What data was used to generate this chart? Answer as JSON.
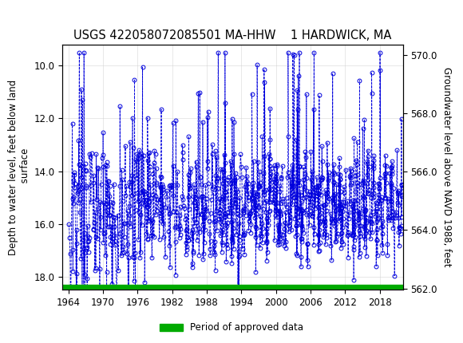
{
  "title": "USGS 422058072085501 MA-HHW    1 HARDWICK, MA",
  "ylabel_left": "Depth to water level, feet below land\n surface",
  "ylabel_right": "Groundwater level above NAVD 1988, feet",
  "ylim_left": [
    18.5,
    9.2
  ],
  "ylim_right": [
    561.95,
    570.35
  ],
  "xlim": [
    1963.0,
    2022.0
  ],
  "xticks": [
    1964,
    1970,
    1976,
    1982,
    1988,
    1994,
    2000,
    2006,
    2012,
    2018
  ],
  "yticks_left": [
    10.0,
    12.0,
    14.0,
    16.0,
    18.0
  ],
  "yticks_right": [
    562.0,
    564.0,
    566.0,
    568.0,
    570.0
  ],
  "header_color": "#1a6b3c",
  "data_color": "#0000dd",
  "period_bar_color": "#00aa00",
  "legend_label": "Period of approved data",
  "background_color": "#ffffff",
  "marker": "o",
  "markersize": 3.5,
  "linestyle": "--",
  "linewidth": 0.6,
  "title_fontsize": 10.5,
  "tick_fontsize": 8.5,
  "label_fontsize": 8.5,
  "green_bar_depth": 18.7
}
